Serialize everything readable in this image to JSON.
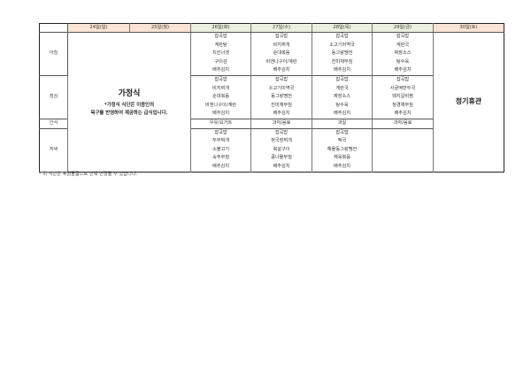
{
  "header": {
    "days": [
      "24일(일)",
      "25일(월)",
      "26일(화)",
      "27일(수)",
      "28일(목)",
      "29일(금)",
      "30일(토)"
    ]
  },
  "meals": [
    "아침",
    "점심",
    "간식",
    "저녁"
  ],
  "home_meal": {
    "title": "가정식",
    "line1": "*가정식 식단은 이용인의",
    "line2": "욕구를 반영하여 제공하는 급식입니다."
  },
  "closed": "정기휴관",
  "menu": {
    "d26": {
      "breakfast": [
        "잡곡밥",
        "계란탕",
        "치킨너겟",
        "구이김",
        "배추김치"
      ],
      "lunch": [
        "잡곡밥",
        "비지찌개",
        "순대볶음",
        "비엔나구이/계란",
        "배추김치"
      ],
      "snack": "우유/요거트",
      "dinner": [
        "잡곡밥",
        "두부찌개",
        "소불고기",
        "숙주무침",
        "배추김치"
      ]
    },
    "d27": {
      "breakfast": [
        "잡곡밥",
        "비지찌개",
        "순대볶음",
        "비엔나구이/계란",
        "배추김치"
      ],
      "lunch": [
        "잡곡밥",
        "소고기미역국",
        "동그랑땡전",
        "진미채무침",
        "배추김치"
      ],
      "snack": "과자/음료",
      "dinner": [
        "잡곡밥",
        "청국장찌개",
        "북살구이",
        "콩나물무침",
        "배추김치"
      ]
    },
    "d28": {
      "breakfast": [
        "잡곡밥",
        "소고기미역국",
        "동그랑땡전",
        "진미채무침",
        "배추김치"
      ],
      "lunch": [
        "잡곡밥",
        "계란국",
        "짜장소스",
        "탕수육",
        "배추김치"
      ],
      "snack": "과일",
      "dinner": [
        "잡곡밥",
        "떡국",
        "해물동그랑땡전",
        "제육볶음",
        "배추김치"
      ]
    },
    "d29": {
      "breakfast": [
        "잡곡밥",
        "계란국",
        "짜장소스",
        "탕수육",
        "배추김치"
      ],
      "lunch": [
        "잡곡밥",
        "사골떡만두국",
        "돼지갈비찜",
        "청경채무침",
        "배추김치"
      ],
      "snack": "과자/음료"
    }
  },
  "note": "* 위 식단은 후원물품으로 인해 변경될 수 있습니다."
}
